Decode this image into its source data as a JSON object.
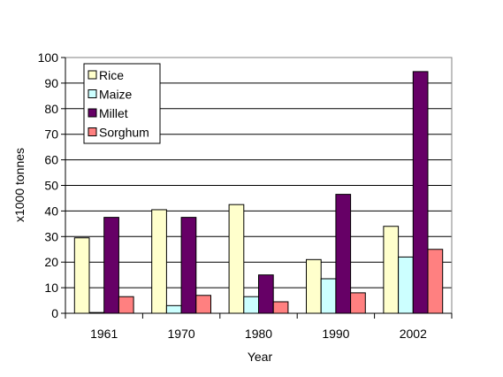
{
  "chart_data": {
    "type": "bar",
    "title": "",
    "xlabel": "Year",
    "ylabel": "x1000 tonnes",
    "categories": [
      "1961",
      "1970",
      "1980",
      "1990",
      "2002"
    ],
    "ylim": [
      0,
      100
    ],
    "yticks": [
      0,
      10,
      20,
      30,
      40,
      50,
      60,
      70,
      80,
      90,
      100
    ],
    "grid": "horizontal",
    "legend_position": "top-left",
    "series": [
      {
        "name": "Rice",
        "color": "#FFFFCC",
        "values": [
          29.5,
          40.5,
          42.5,
          21,
          34
        ]
      },
      {
        "name": "Maize",
        "color": "#CCFFFF",
        "values": [
          0.3,
          3,
          6.5,
          13.5,
          22
        ]
      },
      {
        "name": "Millet",
        "color": "#660066",
        "values": [
          37.5,
          37.5,
          15,
          46.5,
          94.5
        ]
      },
      {
        "name": "Sorghum",
        "color": "#FF8080",
        "values": [
          6.5,
          7,
          4.5,
          8,
          25
        ]
      }
    ]
  }
}
